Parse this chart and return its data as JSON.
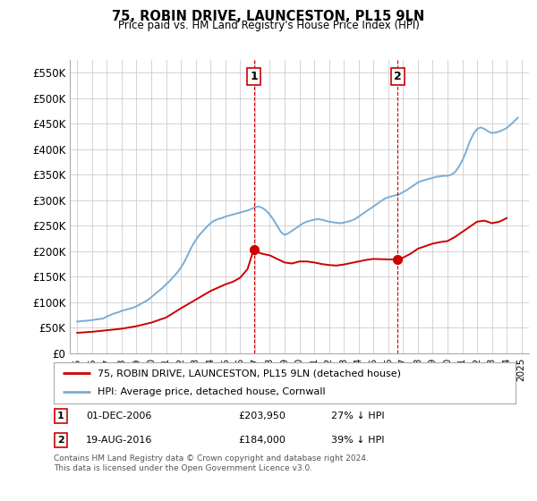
{
  "title": "75, ROBIN DRIVE, LAUNCESTON, PL15 9LN",
  "subtitle": "Price paid vs. HM Land Registry's House Price Index (HPI)",
  "ylim": [
    0,
    575000
  ],
  "yticks": [
    0,
    50000,
    100000,
    150000,
    200000,
    250000,
    300000,
    350000,
    400000,
    450000,
    500000,
    550000
  ],
  "ytick_labels": [
    "£0",
    "£50K",
    "£100K",
    "£150K",
    "£200K",
    "£250K",
    "£300K",
    "£350K",
    "£400K",
    "£450K",
    "£500K",
    "£550K"
  ],
  "xlim_start": 1994.5,
  "xlim_end": 2025.5,
  "legend_line1": "75, ROBIN DRIVE, LAUNCESTON, PL15 9LN (detached house)",
  "legend_line2": "HPI: Average price, detached house, Cornwall",
  "line1_color": "#cc0000",
  "line2_color": "#7aadd4",
  "marker1_x": 2006.92,
  "marker1_y": 203950,
  "marker2_x": 2016.64,
  "marker2_y": 184000,
  "footer": "Contains HM Land Registry data © Crown copyright and database right 2024.\nThis data is licensed under the Open Government Licence v3.0.",
  "background_color": "#ffffff",
  "grid_color": "#cccccc",
  "hpi_years": [
    1995.0,
    1995.25,
    1995.5,
    1995.75,
    1996.0,
    1996.25,
    1996.5,
    1996.75,
    1997.0,
    1997.25,
    1997.5,
    1997.75,
    1998.0,
    1998.25,
    1998.5,
    1998.75,
    1999.0,
    1999.25,
    1999.5,
    1999.75,
    2000.0,
    2000.25,
    2000.5,
    2000.75,
    2001.0,
    2001.25,
    2001.5,
    2001.75,
    2002.0,
    2002.25,
    2002.5,
    2002.75,
    2003.0,
    2003.25,
    2003.5,
    2003.75,
    2004.0,
    2004.25,
    2004.5,
    2004.75,
    2005.0,
    2005.25,
    2005.5,
    2005.75,
    2006.0,
    2006.25,
    2006.5,
    2006.75,
    2007.0,
    2007.25,
    2007.5,
    2007.75,
    2008.0,
    2008.25,
    2008.5,
    2008.75,
    2009.0,
    2009.25,
    2009.5,
    2009.75,
    2010.0,
    2010.25,
    2010.5,
    2010.75,
    2011.0,
    2011.25,
    2011.5,
    2011.75,
    2012.0,
    2012.25,
    2012.5,
    2012.75,
    2013.0,
    2013.25,
    2013.5,
    2013.75,
    2014.0,
    2014.25,
    2014.5,
    2014.75,
    2015.0,
    2015.25,
    2015.5,
    2015.75,
    2016.0,
    2016.25,
    2016.5,
    2016.75,
    2017.0,
    2017.25,
    2017.5,
    2017.75,
    2018.0,
    2018.25,
    2018.5,
    2018.75,
    2019.0,
    2019.25,
    2019.5,
    2019.75,
    2020.0,
    2020.25,
    2020.5,
    2020.75,
    2021.0,
    2021.25,
    2021.5,
    2021.75,
    2022.0,
    2022.25,
    2022.5,
    2022.75,
    2023.0,
    2023.25,
    2023.5,
    2023.75,
    2024.0,
    2024.25,
    2024.5,
    2024.75
  ],
  "hpi_values": [
    62000,
    63000,
    63500,
    64000,
    65000,
    66000,
    67000,
    68000,
    72000,
    75000,
    78000,
    80000,
    83000,
    85000,
    87000,
    89000,
    92000,
    96000,
    100000,
    104000,
    110000,
    116000,
    122000,
    128000,
    135000,
    142000,
    150000,
    158000,
    168000,
    180000,
    195000,
    210000,
    222000,
    232000,
    240000,
    248000,
    255000,
    260000,
    263000,
    265000,
    268000,
    270000,
    272000,
    274000,
    276000,
    278000,
    280000,
    283000,
    286000,
    288000,
    285000,
    280000,
    272000,
    262000,
    250000,
    238000,
    232000,
    235000,
    240000,
    245000,
    250000,
    255000,
    258000,
    260000,
    262000,
    263000,
    262000,
    260000,
    258000,
    257000,
    256000,
    255000,
    256000,
    258000,
    260000,
    263000,
    268000,
    273000,
    278000,
    283000,
    288000,
    293000,
    298000,
    303000,
    306000,
    308000,
    310000,
    312000,
    316000,
    320000,
    325000,
    330000,
    335000,
    338000,
    340000,
    342000,
    344000,
    346000,
    347000,
    348000,
    348000,
    350000,
    355000,
    365000,
    378000,
    395000,
    415000,
    430000,
    440000,
    443000,
    440000,
    435000,
    432000,
    433000,
    435000,
    438000,
    442000,
    448000,
    455000,
    462000
  ],
  "price_years": [
    1995.0,
    1996.0,
    1997.0,
    1998.0,
    1999.0,
    2000.0,
    2001.0,
    2002.0,
    2003.0,
    2004.0,
    2005.0,
    2005.5,
    2006.0,
    2006.5,
    2006.92,
    2007.0,
    2007.5,
    2008.0,
    2008.5,
    2009.0,
    2009.5,
    2010.0,
    2010.5,
    2011.0,
    2011.5,
    2012.0,
    2012.5,
    2013.0,
    2013.5,
    2014.0,
    2014.5,
    2015.0,
    2015.5,
    2016.0,
    2016.3,
    2016.64,
    2016.9,
    2017.5,
    2018.0,
    2018.5,
    2019.0,
    2019.5,
    2020.0,
    2020.5,
    2021.0,
    2021.5,
    2022.0,
    2022.5,
    2023.0,
    2023.5,
    2024.0
  ],
  "price_values": [
    40000,
    42000,
    45000,
    48000,
    53000,
    60000,
    70000,
    88000,
    105000,
    122000,
    135000,
    140000,
    148000,
    165000,
    203950,
    200000,
    195000,
    192000,
    185000,
    178000,
    176000,
    180000,
    180000,
    178000,
    175000,
    173000,
    172000,
    174000,
    177000,
    180000,
    183000,
    185000,
    184500,
    184000,
    184000,
    184000,
    186000,
    195000,
    205000,
    210000,
    215000,
    218000,
    220000,
    228000,
    238000,
    248000,
    258000,
    260000,
    255000,
    258000,
    265000
  ]
}
